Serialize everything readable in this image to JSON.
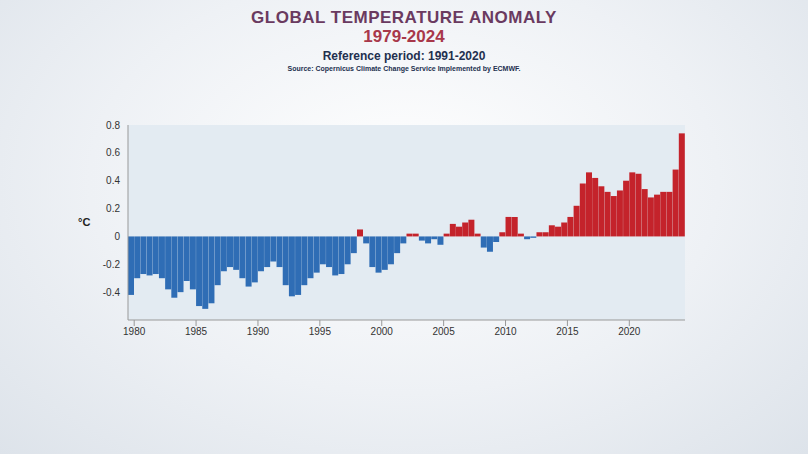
{
  "chart_data": {
    "type": "bar",
    "title": "GLOBAL TEMPERATURE ANOMALY",
    "subtitle": "1979-2024",
    "annotations": [
      "Reference period: 1991-2020",
      "Source: Copernicus Climate Change Service Implemented by ECMWF."
    ],
    "y_label": "°C",
    "x": [
      1979.75,
      1980.25,
      1980.75,
      1981.25,
      1981.75,
      1982.25,
      1982.75,
      1983.25,
      1983.75,
      1984.25,
      1984.75,
      1985.25,
      1985.75,
      1986.25,
      1986.75,
      1987.25,
      1987.75,
      1988.25,
      1988.75,
      1989.25,
      1989.75,
      1990.25,
      1990.75,
      1991.25,
      1991.75,
      1992.25,
      1992.75,
      1993.25,
      1993.75,
      1994.25,
      1994.75,
      1995.25,
      1995.75,
      1996.25,
      1996.75,
      1997.25,
      1997.75,
      1998.25,
      1998.75,
      1999.25,
      1999.75,
      2000.25,
      2000.75,
      2001.25,
      2001.75,
      2002.25,
      2002.75,
      2003.25,
      2003.75,
      2004.25,
      2004.75,
      2005.25,
      2005.75,
      2006.25,
      2006.75,
      2007.25,
      2007.75,
      2008.25,
      2008.75,
      2009.25,
      2009.75,
      2010.25,
      2010.75,
      2011.25,
      2011.75,
      2012.25,
      2012.75,
      2013.25,
      2013.75,
      2014.25,
      2014.75,
      2015.25,
      2015.75,
      2016.25,
      2016.75,
      2017.25,
      2017.75,
      2018.25,
      2018.75,
      2019.25,
      2019.75,
      2020.25,
      2020.75,
      2021.25,
      2021.75,
      2022.25,
      2022.75,
      2023.25,
      2023.75,
      2024.25
    ],
    "values": [
      -0.42,
      -0.3,
      -0.27,
      -0.28,
      -0.27,
      -0.3,
      -0.38,
      -0.44,
      -0.4,
      -0.32,
      -0.38,
      -0.5,
      -0.52,
      -0.48,
      -0.35,
      -0.25,
      -0.22,
      -0.24,
      -0.3,
      -0.36,
      -0.33,
      -0.25,
      -0.22,
      -0.18,
      -0.22,
      -0.35,
      -0.43,
      -0.42,
      -0.35,
      -0.3,
      -0.26,
      -0.2,
      -0.22,
      -0.28,
      -0.27,
      -0.2,
      -0.12,
      0.05,
      -0.05,
      -0.22,
      -0.26,
      -0.24,
      -0.2,
      -0.12,
      -0.05,
      0.02,
      0.02,
      -0.03,
      -0.05,
      -0.02,
      -0.06,
      0.02,
      0.09,
      0.07,
      0.1,
      0.12,
      0.02,
      -0.08,
      -0.11,
      -0.04,
      0.03,
      0.14,
      0.14,
      0.02,
      -0.02,
      -0.01,
      0.03,
      0.03,
      0.08,
      0.07,
      0.1,
      0.14,
      0.22,
      0.38,
      0.46,
      0.42,
      0.36,
      0.32,
      0.29,
      0.33,
      0.4,
      0.46,
      0.45,
      0.34,
      0.28,
      0.3,
      0.32,
      0.32,
      0.48,
      0.74
    ],
    "colors": [
      "#2f6db5",
      "#2f6db5",
      "#2f6db5",
      "#2f6db5",
      "#2f6db5",
      "#2f6db5",
      "#2f6db5",
      "#2f6db5",
      "#2f6db5",
      "#2f6db5",
      "#2f6db5",
      "#2f6db5",
      "#2f6db5",
      "#2f6db5",
      "#2f6db5",
      "#2f6db5",
      "#2f6db5",
      "#2f6db5",
      "#2f6db5",
      "#2f6db5",
      "#2f6db5",
      "#2f6db5",
      "#2f6db5",
      "#2f6db5",
      "#2f6db5",
      "#2f6db5",
      "#2f6db5",
      "#2f6db5",
      "#2f6db5",
      "#2f6db5",
      "#2f6db5",
      "#2f6db5",
      "#2f6db5",
      "#2f6db5",
      "#2f6db5",
      "#2f6db5",
      "#2f6db5",
      "#c4232b",
      "#2f6db5",
      "#2f6db5",
      "#2f6db5",
      "#2f6db5",
      "#2f6db5",
      "#2f6db5",
      "#2f6db5",
      "#c4232b",
      "#c4232b",
      "#2f6db5",
      "#2f6db5",
      "#2f6db5",
      "#2f6db5",
      "#c4232b",
      "#c4232b",
      "#c4232b",
      "#c4232b",
      "#c4232b",
      "#c4232b",
      "#2f6db5",
      "#2f6db5",
      "#2f6db5",
      "#c4232b",
      "#c4232b",
      "#c4232b",
      "#c4232b",
      "#2f6db5",
      "#2f6db5",
      "#c4232b",
      "#c4232b",
      "#c4232b",
      "#c4232b",
      "#c4232b",
      "#c4232b",
      "#c4232b",
      "#c4232b",
      "#c4232b",
      "#c4232b",
      "#c4232b",
      "#c4232b",
      "#c4232b",
      "#c4232b",
      "#c4232b",
      "#c4232b",
      "#c4232b",
      "#c4232b",
      "#c4232b",
      "#c4232b",
      "#c4232b",
      "#c4232b",
      "#c4232b",
      "#c4232b"
    ],
    "xlim": [
      1979.5,
      2024.5
    ],
    "xticks": [
      1980,
      1985,
      1990,
      1995,
      2000,
      2005,
      2010,
      2015,
      2020
    ],
    "ylim": [
      -0.6,
      0.8
    ],
    "yticks": [
      -0.4,
      -0.2,
      0,
      0.2,
      0.4,
      0.6,
      0.8
    ],
    "grid": false
  }
}
